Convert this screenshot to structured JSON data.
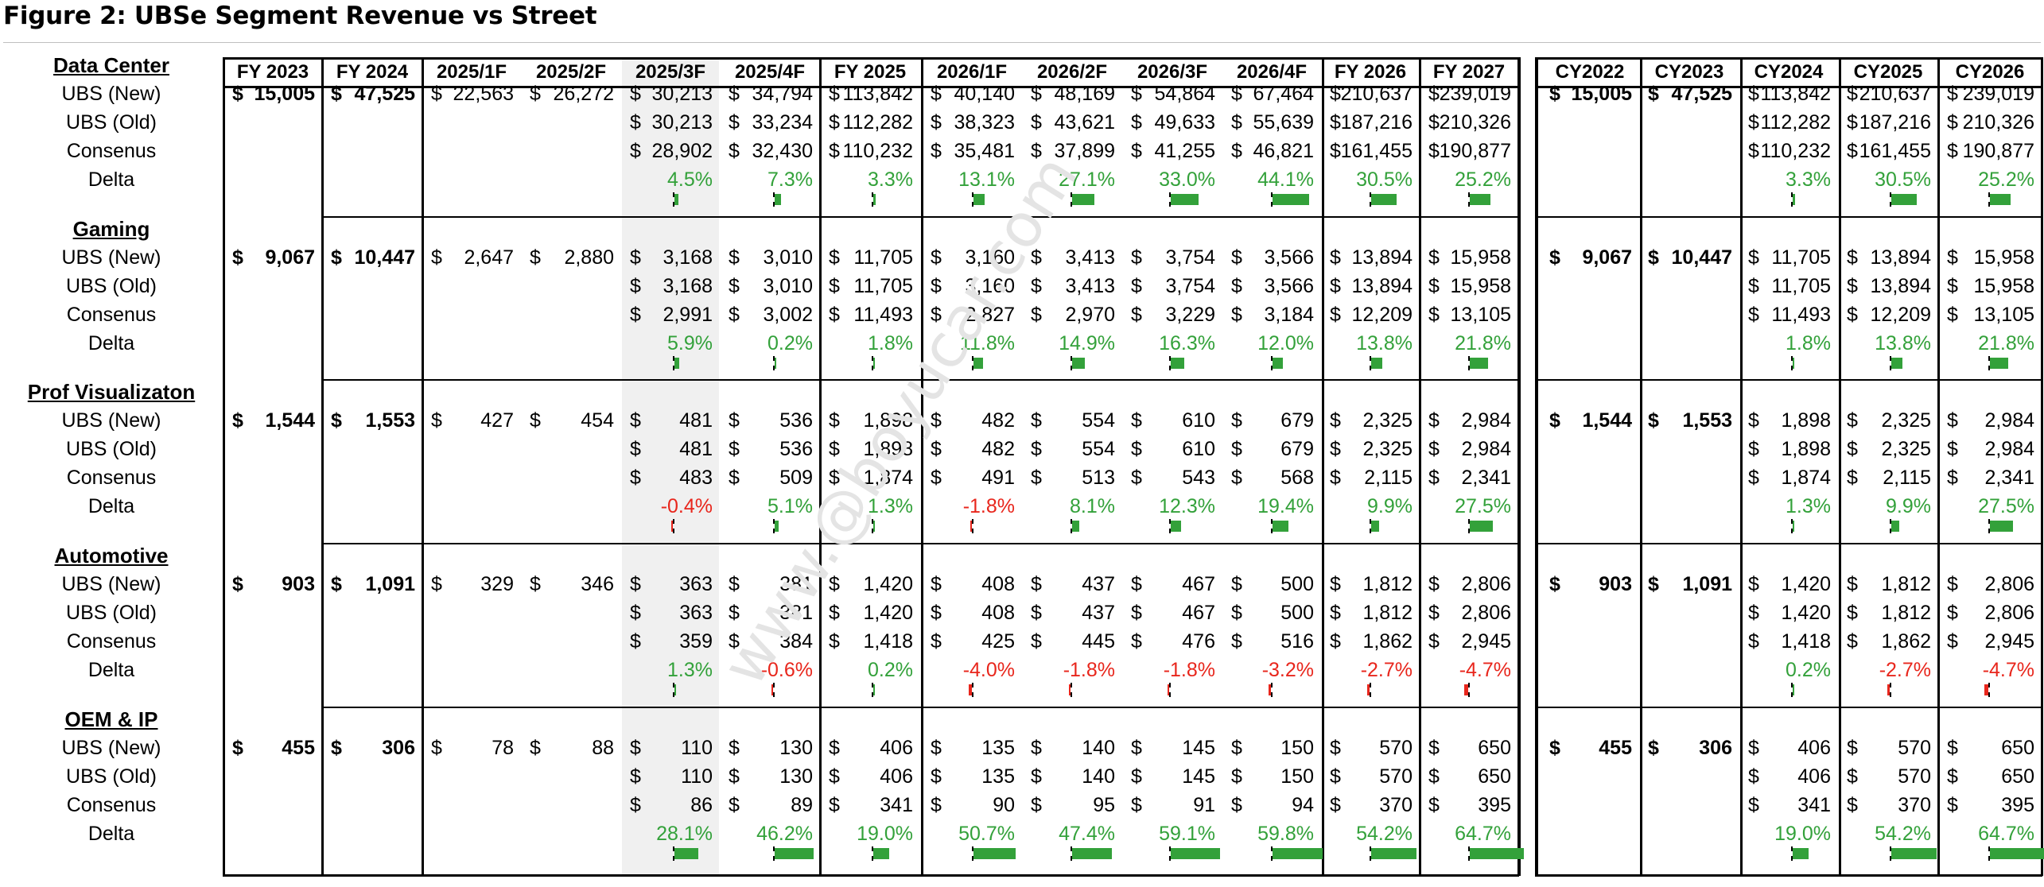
{
  "title": "Figure 2: UBSe Segment Revenue vs Street",
  "watermark": "www.@boyucar.com",
  "colors": {
    "positive": "#33a13a",
    "negative": "#e8261c",
    "shade": "#f0f0f0"
  },
  "columns": [
    "FY 2023",
    "FY 2024",
    "2025/1F",
    "2025/2F",
    "2025/3F",
    "2025/4F",
    "FY 2025",
    "2026/1F",
    "2026/2F",
    "2026/3F",
    "2026/4F",
    "FY 2026",
    "FY 2027",
    "CY2022",
    "CY2023",
    "CY2024",
    "CY2025",
    "CY2026"
  ],
  "row_labels": [
    "UBS (New)",
    "UBS (Old)",
    "Consenus",
    "Delta"
  ],
  "segments": [
    {
      "name": "Data Center",
      "new": [
        "15,005",
        "47,525",
        "22,563",
        "26,272",
        "30,213",
        "34,794",
        "113,842",
        "40,140",
        "48,169",
        "54,864",
        "67,464",
        "210,637",
        "239,019",
        "15,005",
        "47,525",
        "113,842",
        "210,637",
        "239,019"
      ],
      "old": [
        "",
        "",
        "",
        "",
        "30,213",
        "33,234",
        "112,282",
        "38,323",
        "43,621",
        "49,633",
        "55,639",
        "187,216",
        "210,326",
        "",
        "",
        "112,282",
        "187,216",
        "210,326"
      ],
      "consensus": [
        "",
        "",
        "",
        "",
        "28,902",
        "32,430",
        "110,232",
        "35,481",
        "37,899",
        "41,255",
        "46,821",
        "161,455",
        "190,877",
        "",
        "",
        "110,232",
        "161,455",
        "190,877"
      ],
      "delta": [
        null,
        null,
        null,
        null,
        4.5,
        7.3,
        3.3,
        13.1,
        27.1,
        33.0,
        44.1,
        30.5,
        25.2,
        null,
        null,
        3.3,
        30.5,
        25.2
      ]
    },
    {
      "name": "Gaming",
      "new": [
        "9,067",
        "10,447",
        "2,647",
        "2,880",
        "3,168",
        "3,010",
        "11,705",
        "3,160",
        "3,413",
        "3,754",
        "3,566",
        "13,894",
        "15,958",
        "9,067",
        "10,447",
        "11,705",
        "13,894",
        "15,958"
      ],
      "old": [
        "",
        "",
        "",
        "",
        "3,168",
        "3,010",
        "11,705",
        "3,160",
        "3,413",
        "3,754",
        "3,566",
        "13,894",
        "15,958",
        "",
        "",
        "11,705",
        "13,894",
        "15,958"
      ],
      "consensus": [
        "",
        "",
        "",
        "",
        "2,991",
        "3,002",
        "11,493",
        "2,827",
        "2,970",
        "3,229",
        "3,184",
        "12,209",
        "13,105",
        "",
        "",
        "11,493",
        "12,209",
        "13,105"
      ],
      "delta": [
        null,
        null,
        null,
        null,
        5.9,
        0.2,
        1.8,
        11.8,
        14.9,
        16.3,
        12.0,
        13.8,
        21.8,
        null,
        null,
        1.8,
        13.8,
        21.8
      ]
    },
    {
      "name": "Prof Visualizaton",
      "new": [
        "1,544",
        "1,553",
        "427",
        "454",
        "481",
        "536",
        "1,898",
        "482",
        "554",
        "610",
        "679",
        "2,325",
        "2,984",
        "1,544",
        "1,553",
        "1,898",
        "2,325",
        "2,984"
      ],
      "old": [
        "",
        "",
        "",
        "",
        "481",
        "536",
        "1,898",
        "482",
        "554",
        "610",
        "679",
        "2,325",
        "2,984",
        "",
        "",
        "1,898",
        "2,325",
        "2,984"
      ],
      "consensus": [
        "",
        "",
        "",
        "",
        "483",
        "509",
        "1,874",
        "491",
        "513",
        "543",
        "568",
        "2,115",
        "2,341",
        "",
        "",
        "1,874",
        "2,115",
        "2,341"
      ],
      "delta": [
        null,
        null,
        null,
        null,
        -0.4,
        5.1,
        1.3,
        -1.8,
        8.1,
        12.3,
        19.4,
        9.9,
        27.5,
        null,
        null,
        1.3,
        9.9,
        27.5
      ]
    },
    {
      "name": "Automotive",
      "new": [
        "903",
        "1,091",
        "329",
        "346",
        "363",
        "381",
        "1,420",
        "408",
        "437",
        "467",
        "500",
        "1,812",
        "2,806",
        "903",
        "1,091",
        "1,420",
        "1,812",
        "2,806"
      ],
      "old": [
        "",
        "",
        "",
        "",
        "363",
        "381",
        "1,420",
        "408",
        "437",
        "467",
        "500",
        "1,812",
        "2,806",
        "",
        "",
        "1,420",
        "1,812",
        "2,806"
      ],
      "consensus": [
        "",
        "",
        "",
        "",
        "359",
        "384",
        "1,418",
        "425",
        "445",
        "476",
        "516",
        "1,862",
        "2,945",
        "",
        "",
        "1,418",
        "1,862",
        "2,945"
      ],
      "delta": [
        null,
        null,
        null,
        null,
        1.3,
        -0.6,
        0.2,
        -4.0,
        -1.8,
        -1.8,
        -3.2,
        -2.7,
        -4.7,
        null,
        null,
        0.2,
        -2.7,
        -4.7
      ]
    },
    {
      "name": "OEM & IP",
      "new": [
        "455",
        "306",
        "78",
        "88",
        "110",
        "130",
        "406",
        "135",
        "140",
        "145",
        "150",
        "570",
        "650",
        "455",
        "306",
        "406",
        "570",
        "650"
      ],
      "old": [
        "",
        "",
        "",
        "",
        "110",
        "130",
        "406",
        "135",
        "140",
        "145",
        "150",
        "570",
        "650",
        "",
        "",
        "406",
        "570",
        "650"
      ],
      "consensus": [
        "",
        "",
        "",
        "",
        "86",
        "89",
        "341",
        "90",
        "95",
        "91",
        "94",
        "370",
        "395",
        "",
        "",
        "341",
        "370",
        "395"
      ],
      "delta": [
        null,
        null,
        null,
        null,
        28.1,
        46.2,
        19.0,
        50.7,
        47.4,
        59.1,
        59.8,
        54.2,
        64.7,
        null,
        null,
        19.0,
        54.2,
        64.7
      ]
    }
  ]
}
